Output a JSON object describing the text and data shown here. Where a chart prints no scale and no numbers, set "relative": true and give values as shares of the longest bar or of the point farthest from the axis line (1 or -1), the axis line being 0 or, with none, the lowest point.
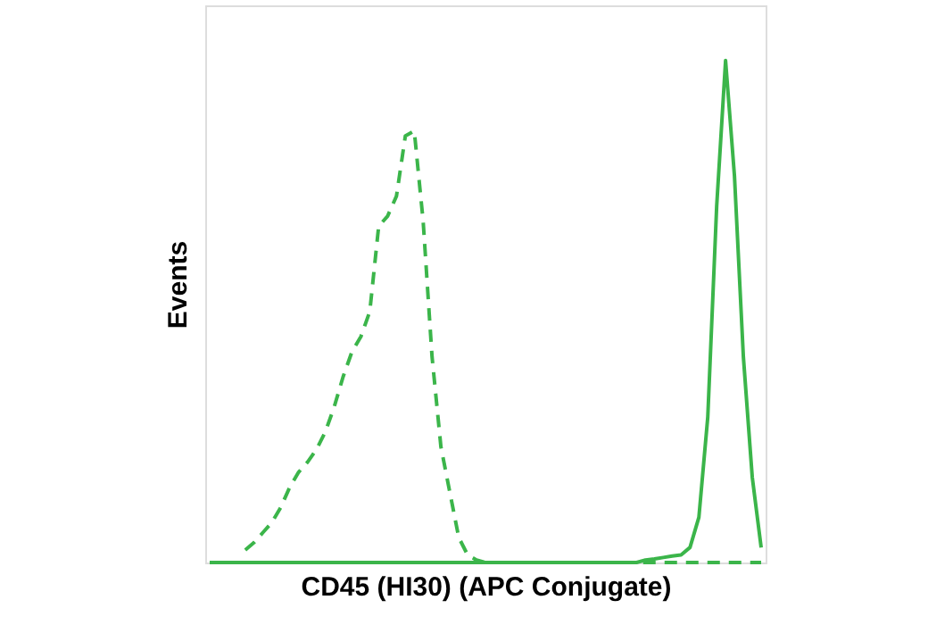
{
  "chart_data": {
    "type": "line",
    "relative": true,
    "xlabel": "CD45 (HI30) (APC Conjugate)",
    "ylabel": "Events",
    "tick_labels": false,
    "grid": false,
    "marker": "none",
    "categories": [
      null,
      null,
      null,
      null,
      null,
      null,
      null,
      null,
      null,
      null,
      null,
      null,
      null,
      null,
      null,
      null,
      null,
      null,
      null,
      null,
      null,
      null,
      null,
      null,
      null,
      null,
      null,
      null,
      null,
      null,
      null,
      null,
      null,
      null,
      null,
      null,
      null,
      null,
      null,
      null,
      null,
      null,
      null,
      null,
      null,
      null,
      null,
      null,
      null,
      null,
      null,
      null,
      null,
      null,
      null,
      null,
      null,
      null,
      null,
      null,
      null,
      null,
      null
    ],
    "series": [
      {
        "color": "#3bb54a",
        "line_style": "dashed",
        "values": [
          null,
          null,
          null,
          null,
          0.025,
          0.04,
          0.06,
          0.08,
          0.11,
          0.15,
          0.18,
          0.2,
          0.225,
          0.26,
          0.31,
          0.37,
          0.42,
          0.45,
          0.5,
          0.67,
          0.69,
          0.73,
          0.85,
          0.86,
          0.68,
          0.41,
          0.23,
          0.14,
          0.05,
          0.015,
          0.005,
          0,
          0,
          0,
          0,
          0,
          0,
          0,
          0,
          0,
          0,
          0,
          0,
          0,
          0,
          0,
          0,
          0,
          0,
          0,
          0,
          0,
          0,
          0,
          0,
          0,
          0,
          0,
          0,
          0,
          0,
          0,
          0
        ]
      },
      {
        "color": "#3bb54a",
        "line_style": "solid",
        "values": [
          0,
          0,
          0,
          0,
          0,
          0,
          0,
          0,
          0,
          0,
          0,
          0,
          0,
          0,
          0,
          0,
          0,
          0,
          0,
          0,
          0,
          0,
          0,
          0,
          0,
          0,
          0,
          0,
          0,
          0,
          0,
          0,
          0,
          0,
          0,
          0,
          0,
          0,
          0,
          0,
          0,
          0,
          0,
          0,
          0,
          0,
          0,
          0,
          0,
          0.005,
          0.007,
          0.01,
          0.013,
          0.015,
          0.03,
          0.09,
          0.29,
          0.71,
          1,
          0.77,
          0.41,
          0.17,
          0.03
        ]
      }
    ]
  }
}
